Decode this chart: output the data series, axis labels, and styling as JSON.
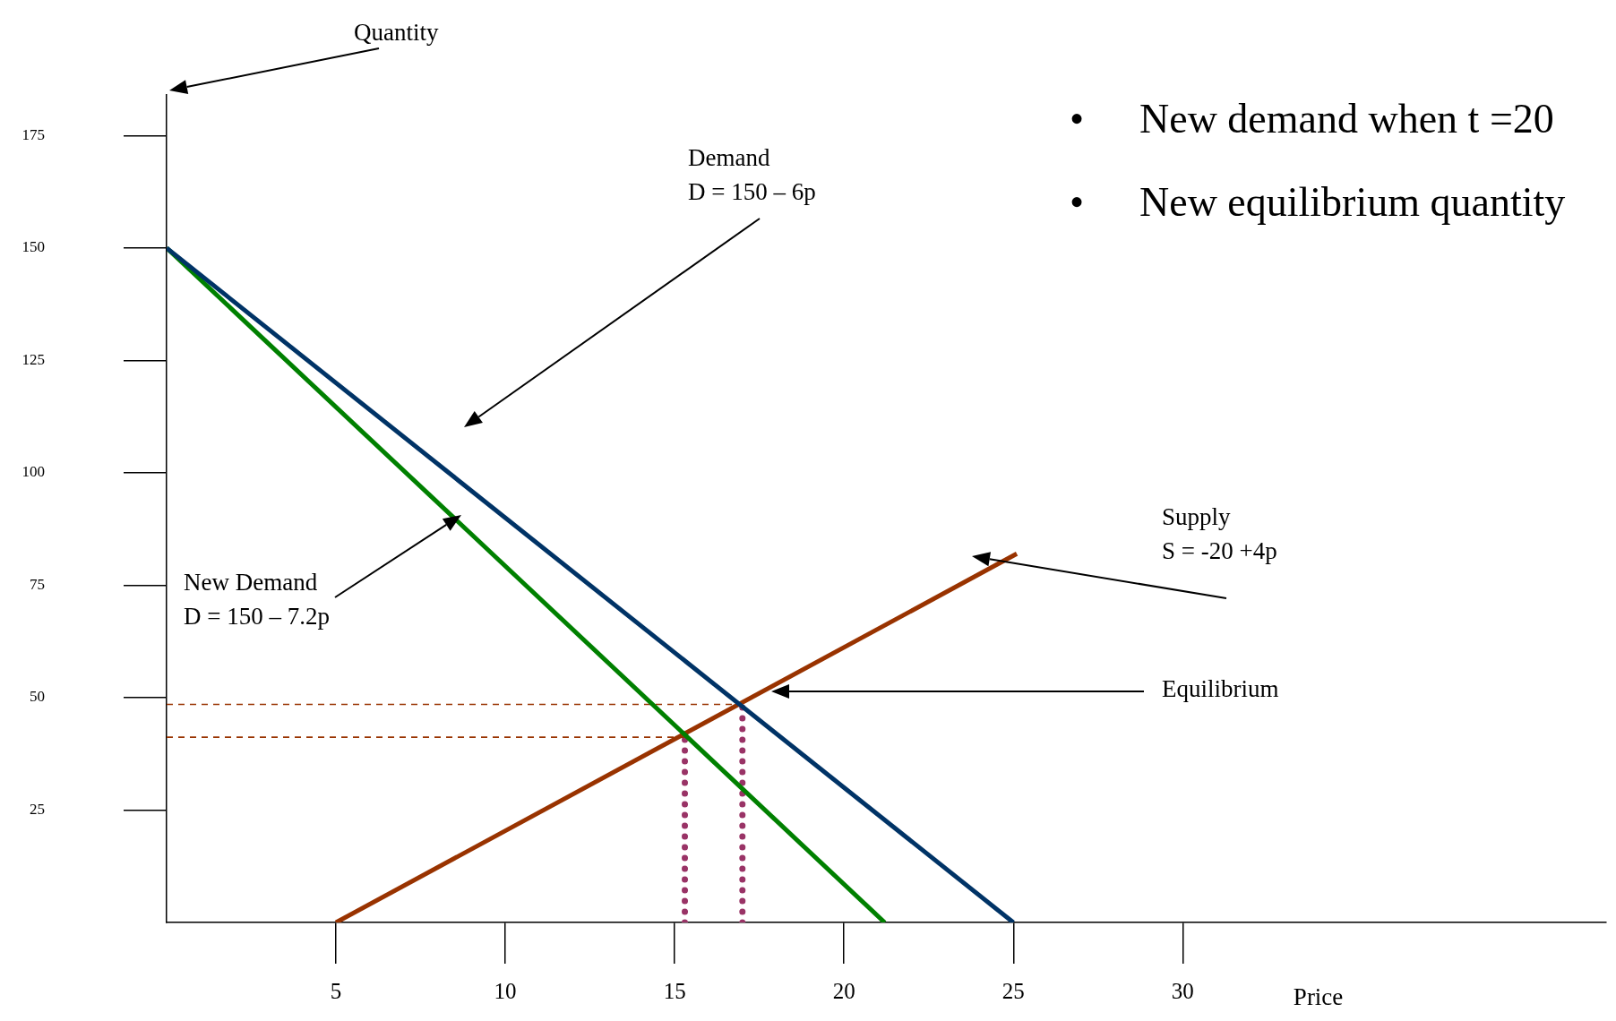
{
  "chart_data": {
    "type": "line",
    "xlabel": "Price",
    "annotations": [
      "Quantity",
      "Demand\nD = 150 – 6p",
      "New Demand\nD = 150 – 7.2p",
      "Supply\nS = -20 +4p",
      "Equilibrium",
      "• New demand when t =20",
      "• New equilibrium quantity"
    ],
    "series": [
      {
        "x": [
          0,
          25
        ],
        "values": [
          150,
          0
        ],
        "color": "#003366",
        "line_style": "solid"
      },
      {
        "x": [
          0,
          21.2
        ],
        "values": [
          150,
          0
        ],
        "color": "#008000",
        "line_style": "solid"
      },
      {
        "x": [
          5,
          25.1
        ],
        "values": [
          0,
          82
        ],
        "color": "#993300",
        "line_style": "solid"
      },
      {
        "x": [
          0,
          17
        ],
        "values": [
          48.5,
          48.5
        ],
        "color": "#993300",
        "line_style": "dashed"
      },
      {
        "x": [
          0,
          15.3
        ],
        "values": [
          41.2,
          41.2
        ],
        "color": "#993300",
        "line_style": "dashed"
      },
      {
        "x": [
          15.3,
          15.3
        ],
        "values": [
          0,
          41.2
        ],
        "color": "#993366",
        "line_style": "dotted"
      },
      {
        "x": [
          17,
          17
        ],
        "values": [
          0,
          48.5
        ],
        "color": "#993366",
        "line_style": "dotted"
      }
    ],
    "xlim": [
      0,
      42.5
    ],
    "ylim": [
      0,
      184
    ],
    "xticks": [
      5,
      10,
      15,
      20,
      25,
      30
    ],
    "yticks": [
      25,
      50,
      75,
      100,
      125,
      150,
      175
    ],
    "grid": false,
    "legend": false,
    "marker": "none"
  }
}
